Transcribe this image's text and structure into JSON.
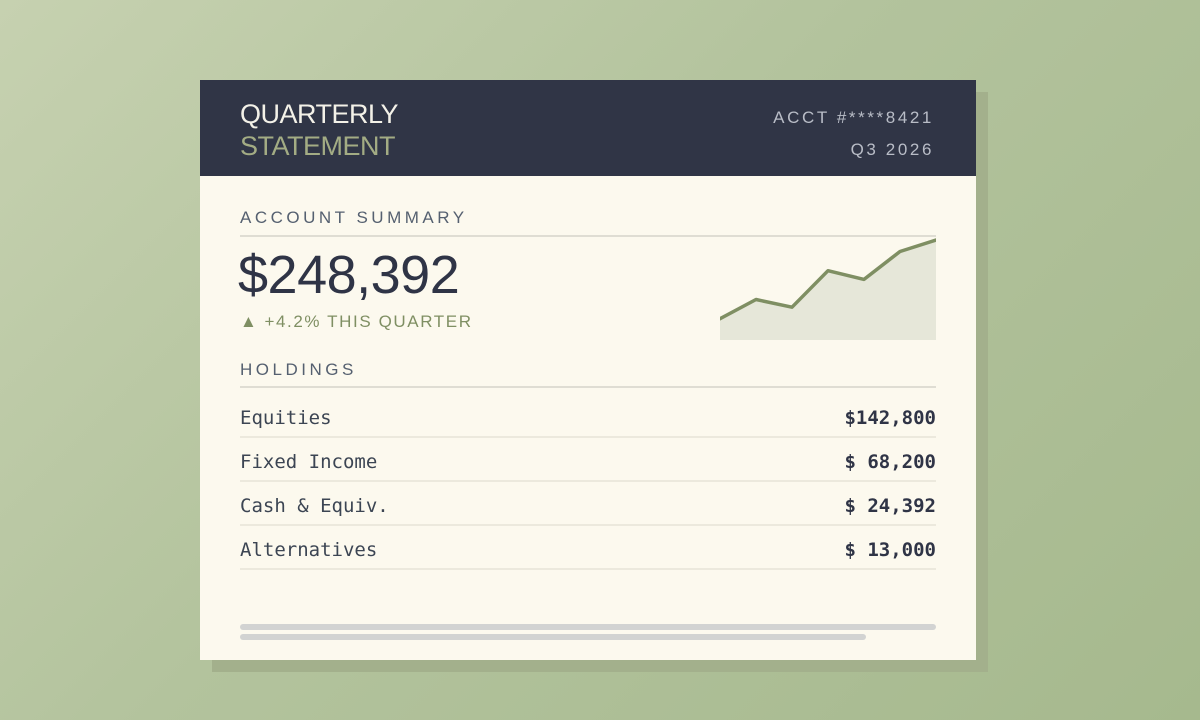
{
  "header": {
    "title_line1": "QUARTERLY",
    "title_line2": "STATEMENT",
    "account": "ACCT #****8421",
    "period": "Q3 2026"
  },
  "summary": {
    "section_title": "ACCOUNT SUMMARY",
    "total_value": "$248,392",
    "change_arrow": "▲",
    "change_text": "+4.2% THIS QUARTER",
    "trend_points": [
      0.18,
      0.38,
      0.3,
      0.68,
      0.59,
      0.88,
      1.0
    ]
  },
  "holdings": {
    "section_title": "HOLDINGS",
    "rows": [
      {
        "name": "Equities",
        "value": "$142,800"
      },
      {
        "name": "Fixed Income",
        "value": "$ 68,200"
      },
      {
        "name": "Cash & Equiv.",
        "value": "$ 24,392"
      },
      {
        "name": "Alternatives",
        "value": "$ 13,000"
      }
    ]
  },
  "colors": {
    "header_bg": "#303546",
    "card_bg": "#fcf9ee",
    "accent_green": "#7f8f63",
    "sparkline_fill": "#e6e7d9"
  }
}
